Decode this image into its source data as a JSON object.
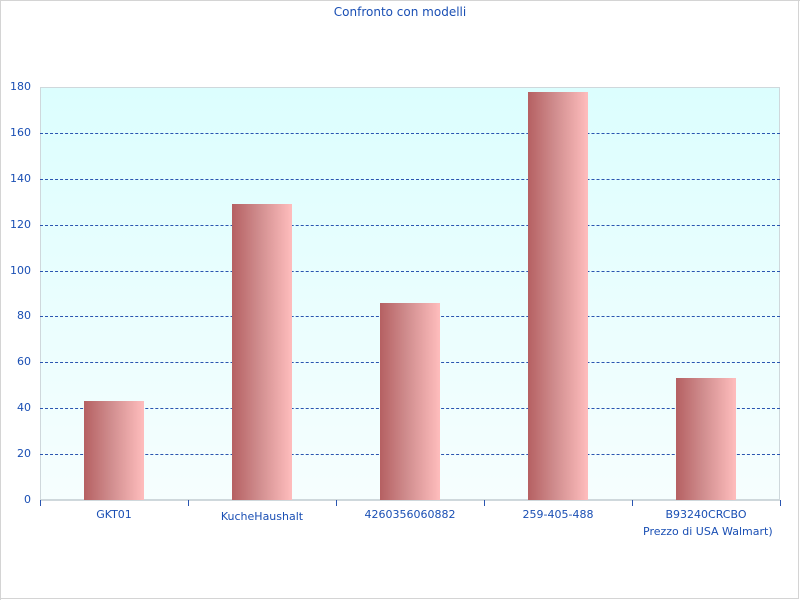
{
  "chart_data": {
    "type": "bar",
    "title": "Confronto con modelli",
    "categories": [
      "GKT01",
      "KucheHaushalt",
      "4260356060882",
      "259-405-488",
      "B93240CRCBO"
    ],
    "values": [
      43,
      129,
      86,
      178,
      53
    ],
    "xlabel": "",
    "ylabel": "",
    "ylim": [
      0,
      180
    ],
    "yticks": [
      0,
      20,
      40,
      60,
      80,
      100,
      120,
      140,
      160,
      180
    ],
    "grid": true,
    "legend": null,
    "annotations": [
      "Prezzo di USA Walmart)"
    ],
    "colors": {
      "bar_dark": "#b56062",
      "bar_light": "#ffbdbd",
      "text": "#1a4fb4",
      "grid": "#2a55b0",
      "plot_bg_top": "#dcfefe"
    }
  },
  "labels": {
    "title": "Confronto con modelli",
    "yticks": [
      "0",
      "20",
      "40",
      "60",
      "80",
      "100",
      "120",
      "140",
      "160",
      "180"
    ],
    "categories": [
      "GKT01",
      "KucheHaushalt",
      "4260356060882",
      "259-405-488",
      "B93240CRCBO"
    ],
    "note": "Prezzo di USA Walmart)"
  }
}
